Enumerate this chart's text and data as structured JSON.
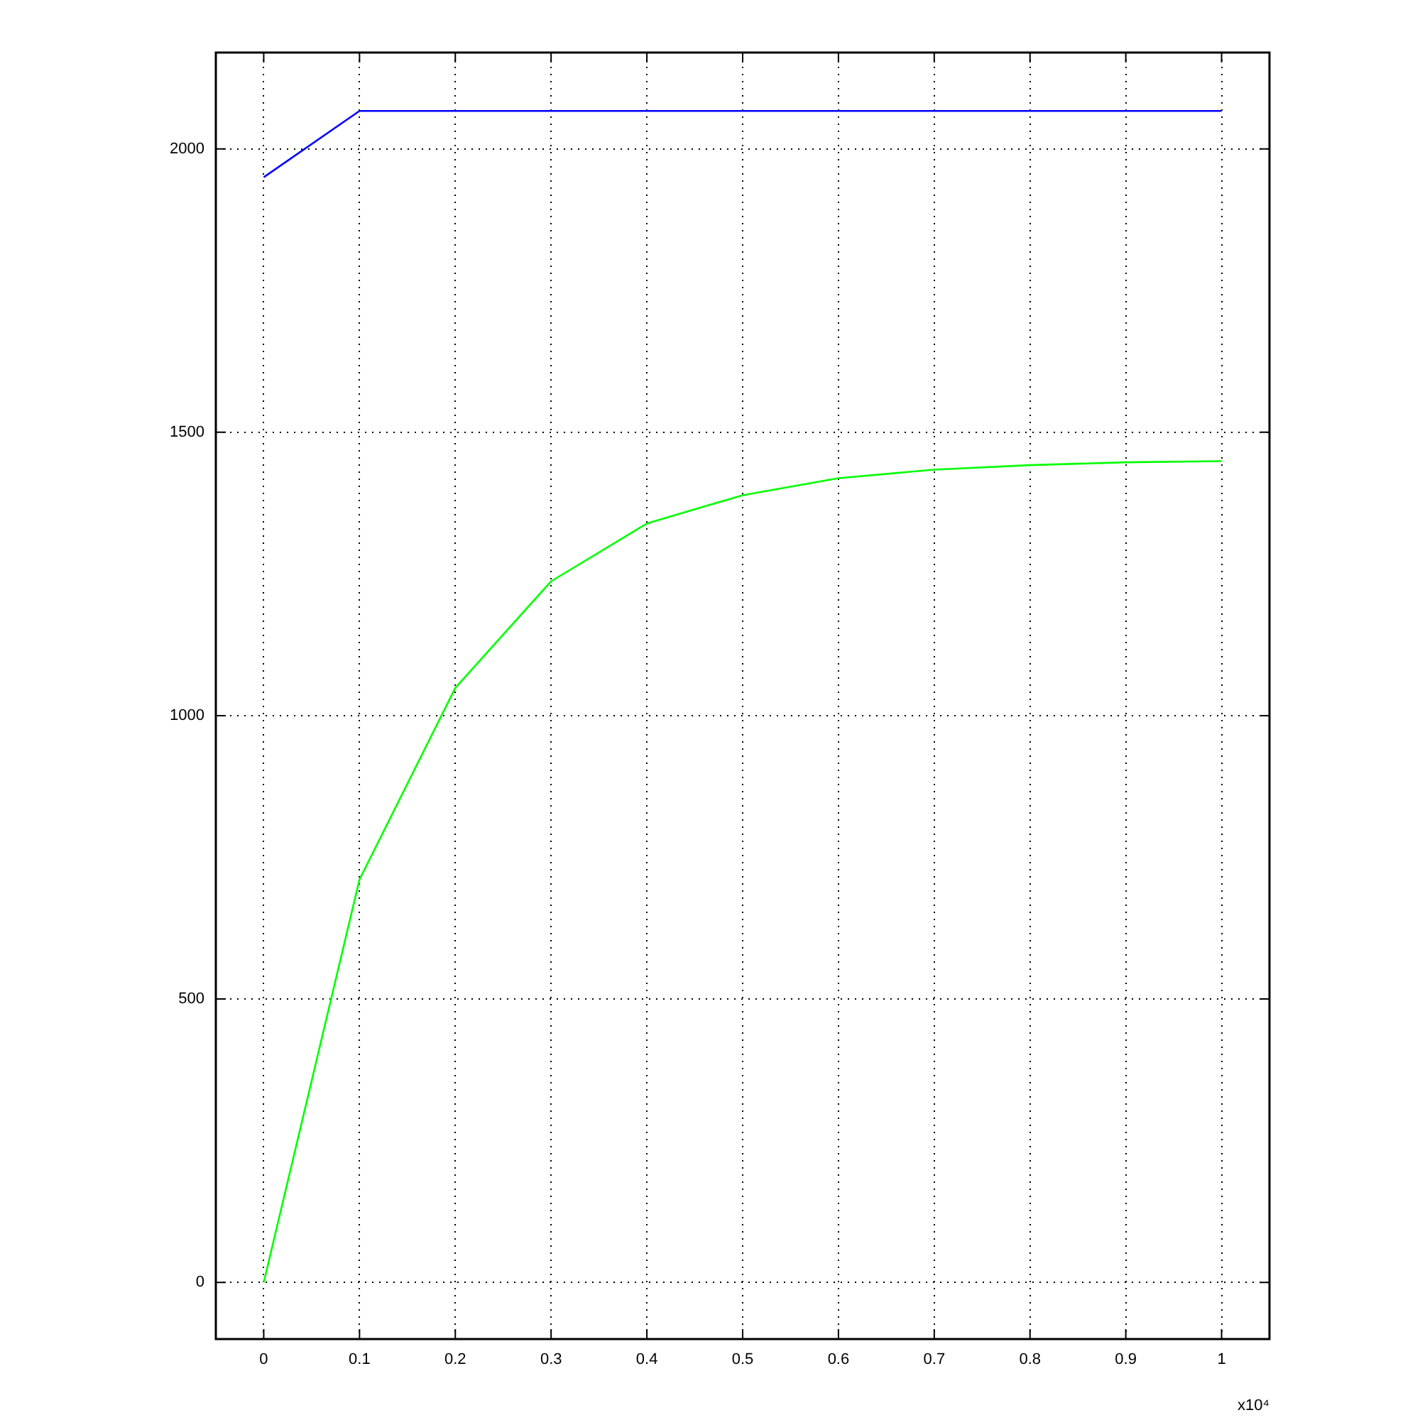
{
  "chart_data": {
    "type": "line",
    "x": [
      0,
      0.1,
      0.2,
      0.3,
      0.4,
      0.5,
      0.6,
      0.7,
      0.8,
      0.9,
      1
    ],
    "series": [
      {
        "color": "#0000ff",
        "values": [
          1950,
          2067,
          2067,
          2067,
          2067,
          2067,
          2067,
          2067,
          2067,
          2067,
          2067
        ]
      },
      {
        "color": "#00ff00",
        "values": [
          0,
          711,
          1049,
          1237,
          1339,
          1389,
          1419,
          1434,
          1442,
          1447,
          1449
        ]
      }
    ],
    "xlim": [
      -0.05,
      1.05
    ],
    "xticks": [
      0,
      0.1,
      0.2,
      0.3,
      0.4,
      0.5,
      0.6,
      0.7,
      0.8,
      0.9,
      1
    ],
    "ylim": [
      -100,
      2170
    ],
    "yticks": [
      0,
      500,
      1000,
      1500,
      2000
    ],
    "grid": true,
    "annotations": [
      "x10⁴"
    ]
  }
}
